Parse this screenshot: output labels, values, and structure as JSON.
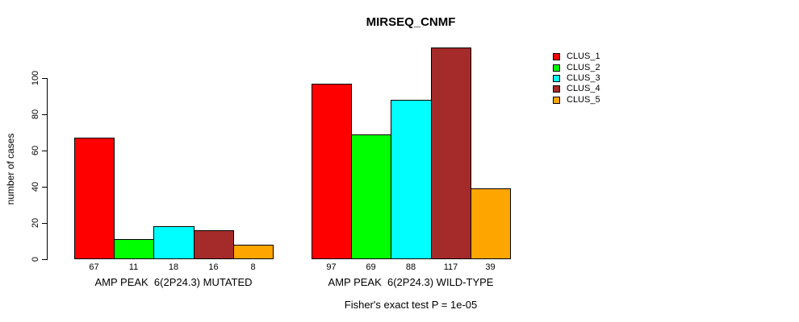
{
  "chart_data": {
    "type": "bar",
    "title": "MIRSEQ_CNMF",
    "ylabel": "number of cases",
    "xlabel": "",
    "yticks": [
      0,
      20,
      40,
      60,
      80,
      100
    ],
    "ylim": [
      0,
      120
    ],
    "grid": false,
    "bar_outline_color": "#000000",
    "legend_position": "right-inside",
    "series": [
      {
        "name": "CLUS_1",
        "color": "#FF0000"
      },
      {
        "name": "CLUS_2",
        "color": "#00FF00"
      },
      {
        "name": "CLUS_3",
        "color": "#00FFFF"
      },
      {
        "name": "CLUS_4",
        "color": "#A52A2A"
      },
      {
        "name": "CLUS_5",
        "color": "#FFA500"
      }
    ],
    "groups": [
      {
        "label": "AMP PEAK  6(2P24.3) MUTATED",
        "values": [
          67,
          11,
          18,
          16,
          8
        ]
      },
      {
        "label": "AMP PEAK  6(2P24.3) WILD-TYPE",
        "values": [
          97,
          69,
          88,
          117,
          39
        ]
      }
    ],
    "annotation": "Fisher's exact test P = 1e-05"
  }
}
